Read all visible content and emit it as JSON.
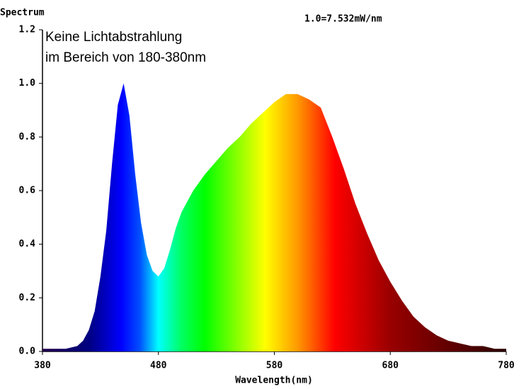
{
  "chart_data": {
    "type": "area",
    "y_label": "Spectrum",
    "x_label": "Wavelength(nm)",
    "annotations": [
      "Keine Lichtabstrahlung",
      "im Bereich von 180-380nm",
      "1.0=7.532mW/nm"
    ],
    "x": [
      380,
      390,
      400,
      410,
      415,
      420,
      425,
      430,
      435,
      440,
      445,
      450,
      455,
      460,
      465,
      470,
      475,
      480,
      485,
      490,
      495,
      500,
      505,
      510,
      520,
      530,
      540,
      550,
      560,
      570,
      580,
      590,
      600,
      610,
      620,
      630,
      640,
      650,
      660,
      670,
      680,
      690,
      700,
      710,
      720,
      730,
      740,
      750,
      760,
      770,
      780
    ],
    "values": [
      0.01,
      0.01,
      0.01,
      0.02,
      0.04,
      0.08,
      0.15,
      0.28,
      0.45,
      0.7,
      0.92,
      1.0,
      0.88,
      0.66,
      0.48,
      0.36,
      0.3,
      0.28,
      0.31,
      0.38,
      0.46,
      0.52,
      0.56,
      0.6,
      0.66,
      0.71,
      0.76,
      0.8,
      0.85,
      0.89,
      0.93,
      0.96,
      0.96,
      0.94,
      0.91,
      0.8,
      0.68,
      0.55,
      0.44,
      0.34,
      0.26,
      0.19,
      0.13,
      0.09,
      0.06,
      0.04,
      0.03,
      0.02,
      0.02,
      0.01,
      0.01
    ],
    "xlim": [
      380,
      780
    ],
    "ylim": [
      0,
      1.2
    ],
    "xticks": [
      380,
      480,
      580,
      680,
      780
    ],
    "yticks": [
      {
        "value": 0,
        "label": "0.0"
      },
      0.2,
      0.4,
      0.6,
      0.8,
      {
        "value": 1,
        "label": "1.0"
      },
      1.2
    ],
    "grid": false
  }
}
